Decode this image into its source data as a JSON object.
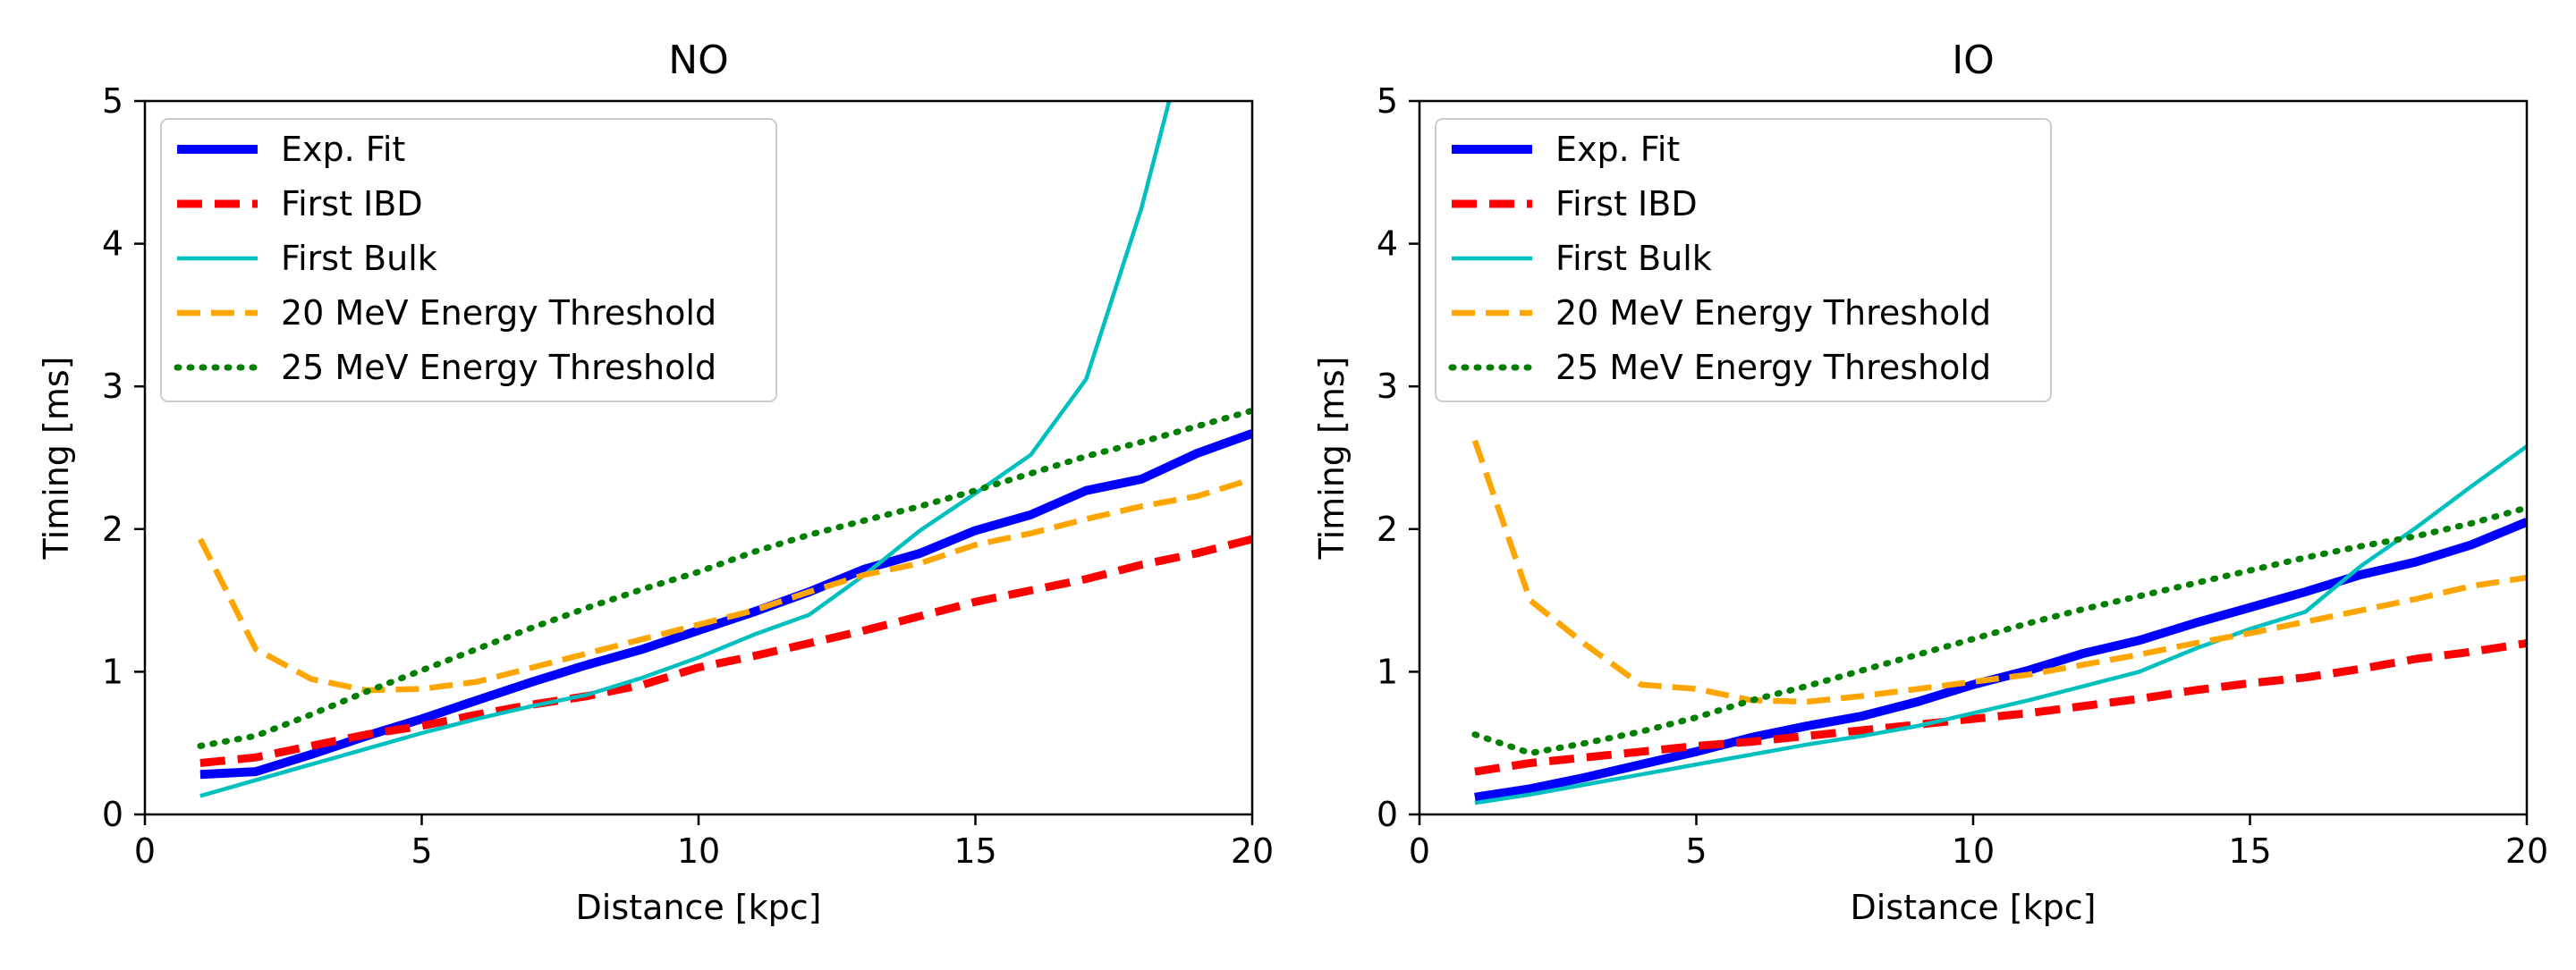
{
  "figure": {
    "background": "#ffffff"
  },
  "chart_data": [
    {
      "type": "line",
      "title": "NO",
      "xlabel": "Distance [kpc]",
      "ylabel": "Timing [ms]",
      "xlim": [
        0,
        20
      ],
      "ylim": [
        0,
        5
      ],
      "xticks": [
        0,
        5,
        10,
        15,
        20
      ],
      "yticks": [
        0,
        1,
        2,
        3,
        4,
        5
      ],
      "legend_position": "top-left",
      "series": [
        {
          "name": "Exp. Fit",
          "color": "#0000ff",
          "style": "solid-thick",
          "x": [
            1,
            2,
            3,
            4,
            5,
            6,
            7,
            8,
            9,
            10,
            11,
            12,
            13,
            14,
            15,
            16,
            17,
            18,
            19,
            20
          ],
          "y": [
            0.28,
            0.3,
            0.42,
            0.55,
            0.67,
            0.8,
            0.93,
            1.05,
            1.16,
            1.29,
            1.42,
            1.56,
            1.72,
            1.83,
            1.99,
            2.1,
            2.27,
            2.35,
            2.53,
            2.67
          ]
        },
        {
          "name": "First IBD",
          "color": "#ff0000",
          "style": "dashed-thick",
          "x": [
            1,
            2,
            3,
            4,
            5,
            6,
            7,
            8,
            9,
            10,
            11,
            12,
            13,
            14,
            15,
            16,
            17,
            18,
            19,
            20
          ],
          "y": [
            0.36,
            0.4,
            0.48,
            0.56,
            0.62,
            0.7,
            0.77,
            0.83,
            0.91,
            1.03,
            1.11,
            1.2,
            1.29,
            1.39,
            1.49,
            1.57,
            1.65,
            1.75,
            1.83,
            1.93
          ]
        },
        {
          "name": "First Bulk",
          "color": "#00bfbf",
          "style": "solid-thin",
          "x": [
            1,
            2,
            3,
            4,
            5,
            6,
            7,
            8,
            9,
            10,
            11,
            12,
            13,
            14,
            15,
            16,
            17,
            18,
            18.5
          ],
          "y": [
            0.13,
            0.24,
            0.35,
            0.46,
            0.57,
            0.67,
            0.76,
            0.84,
            0.96,
            1.1,
            1.26,
            1.4,
            1.68,
            1.99,
            2.25,
            2.52,
            3.05,
            4.25,
            5.0
          ]
        },
        {
          "name": "20 MeV Energy Threshold",
          "color": "#ffa500",
          "style": "dashed",
          "x": [
            1,
            2,
            3,
            4,
            5,
            6,
            7,
            8,
            9,
            10,
            11,
            12,
            13,
            14,
            15,
            16,
            17,
            18,
            19,
            20
          ],
          "y": [
            1.93,
            1.16,
            0.95,
            0.87,
            0.88,
            0.93,
            1.03,
            1.13,
            1.23,
            1.33,
            1.43,
            1.56,
            1.68,
            1.76,
            1.89,
            1.97,
            2.07,
            2.16,
            2.23,
            2.35
          ]
        },
        {
          "name": "25 MeV Energy Threshold",
          "color": "#007f00",
          "style": "dotted",
          "x": [
            1,
            2,
            3,
            4,
            5,
            6,
            7,
            8,
            9,
            10,
            11,
            12,
            13,
            14,
            15,
            16,
            17,
            18,
            19,
            20
          ],
          "y": [
            0.48,
            0.55,
            0.7,
            0.86,
            1.01,
            1.16,
            1.31,
            1.45,
            1.58,
            1.7,
            1.84,
            1.96,
            2.06,
            2.16,
            2.27,
            2.39,
            2.51,
            2.61,
            2.72,
            2.83
          ]
        }
      ]
    },
    {
      "type": "line",
      "title": "IO",
      "xlabel": "Distance [kpc]",
      "ylabel": "Timing [ms]",
      "xlim": [
        0,
        20
      ],
      "ylim": [
        0,
        5
      ],
      "xticks": [
        0,
        5,
        10,
        15,
        20
      ],
      "yticks": [
        0,
        1,
        2,
        3,
        4,
        5
      ],
      "legend_position": "top-left",
      "series": [
        {
          "name": "Exp. Fit",
          "color": "#0000ff",
          "style": "solid-thick",
          "x": [
            1,
            2,
            3,
            4,
            5,
            6,
            7,
            8,
            9,
            10,
            11,
            12,
            13,
            14,
            15,
            16,
            17,
            18,
            19,
            20
          ],
          "y": [
            0.12,
            0.18,
            0.26,
            0.35,
            0.44,
            0.54,
            0.62,
            0.69,
            0.79,
            0.91,
            1.01,
            1.13,
            1.22,
            1.34,
            1.45,
            1.56,
            1.68,
            1.77,
            1.89,
            2.05
          ]
        },
        {
          "name": "First IBD",
          "color": "#ff0000",
          "style": "dashed-thick",
          "x": [
            1,
            2,
            3,
            4,
            5,
            6,
            7,
            8,
            9,
            10,
            11,
            12,
            13,
            14,
            15,
            16,
            17,
            18,
            19,
            20
          ],
          "y": [
            0.3,
            0.36,
            0.4,
            0.44,
            0.48,
            0.51,
            0.55,
            0.59,
            0.63,
            0.67,
            0.71,
            0.76,
            0.81,
            0.87,
            0.92,
            0.96,
            1.02,
            1.09,
            1.14,
            1.2
          ]
        },
        {
          "name": "First Bulk",
          "color": "#00bfbf",
          "style": "solid-thin",
          "x": [
            1,
            2,
            3,
            4,
            5,
            6,
            7,
            8,
            9,
            10,
            11,
            12,
            13,
            14,
            15,
            16,
            17,
            18,
            19,
            20
          ],
          "y": [
            0.08,
            0.14,
            0.21,
            0.28,
            0.35,
            0.42,
            0.49,
            0.55,
            0.62,
            0.71,
            0.8,
            0.9,
            1.0,
            1.16,
            1.3,
            1.42,
            1.74,
            2.01,
            2.3,
            2.58
          ]
        },
        {
          "name": "20 MeV Energy Threshold",
          "color": "#ffa500",
          "style": "dashed",
          "x": [
            1,
            2,
            3,
            4,
            5,
            6,
            7,
            8,
            9,
            10,
            11,
            12,
            13,
            14,
            15,
            16,
            17,
            18,
            19,
            20
          ],
          "y": [
            2.62,
            1.5,
            1.19,
            0.91,
            0.88,
            0.8,
            0.79,
            0.83,
            0.88,
            0.93,
            0.98,
            1.05,
            1.12,
            1.2,
            1.27,
            1.35,
            1.43,
            1.51,
            1.6,
            1.66
          ]
        },
        {
          "name": "25 MeV Energy Threshold",
          "color": "#007f00",
          "style": "dotted",
          "x": [
            1,
            2,
            3,
            4,
            5,
            6,
            7,
            8,
            9,
            10,
            11,
            12,
            13,
            14,
            15,
            16,
            17,
            18,
            19,
            20
          ],
          "y": [
            0.56,
            0.43,
            0.5,
            0.58,
            0.68,
            0.8,
            0.9,
            1.01,
            1.12,
            1.23,
            1.34,
            1.44,
            1.53,
            1.62,
            1.71,
            1.8,
            1.88,
            1.95,
            2.04,
            2.15
          ]
        }
      ]
    }
  ]
}
